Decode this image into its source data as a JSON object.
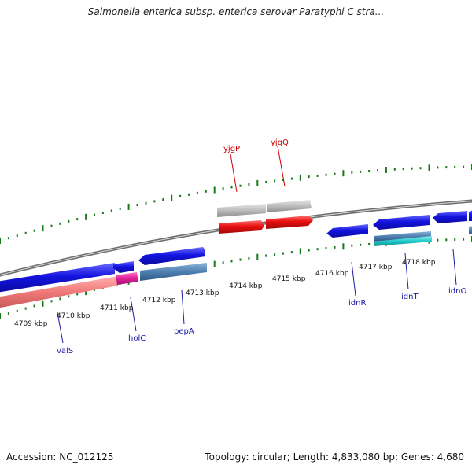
{
  "title": "Salmonella enterica subsp. enterica serovar Paratyphi C stra...",
  "footer": {
    "accession": "Accession: NC_012125",
    "topology": "Topology: circular; Length: 4,833,080 bp; Genes: 4,680"
  },
  "kbp_labels": [
    "4709 kbp",
    "4710 kbp",
    "4711 kbp",
    "4712 kbp",
    "4713 kbp",
    "4714 kbp",
    "4715 kbp",
    "4716 kbp",
    "4717 kbp",
    "4718 kbp"
  ],
  "genes_above": [
    "yjgP",
    "yjgQ"
  ],
  "genes_below": [
    "valS",
    "holC",
    "pepA",
    "idnR",
    "idnT",
    "idnO"
  ],
  "colors": {
    "cds_blue": "#1a1ae0",
    "rna_red": "#e01010",
    "pseudo_gray": "#b8b8b8",
    "pink": "#f08080",
    "magenta": "#e0209a",
    "steel": "#4f7fb0",
    "cyan": "#20c8c8",
    "tick_green": "#1a7a1a"
  }
}
